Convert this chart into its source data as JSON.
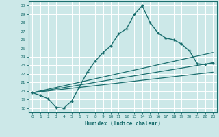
{
  "xlabel": "Humidex (Indice chaleur)",
  "ylabel": "",
  "background_color": "#cce8e8",
  "grid_color": "#ffffff",
  "line_color": "#1a6e6e",
  "xlim": [
    -0.5,
    23.5
  ],
  "ylim": [
    17.5,
    30.5
  ],
  "xticks": [
    0,
    1,
    2,
    3,
    4,
    5,
    6,
    7,
    8,
    9,
    10,
    11,
    12,
    13,
    14,
    15,
    16,
    17,
    18,
    19,
    20,
    21,
    22,
    23
  ],
  "yticks": [
    18,
    19,
    20,
    21,
    22,
    23,
    24,
    25,
    26,
    27,
    28,
    29,
    30
  ],
  "series": [
    {
      "x": [
        0,
        1,
        2,
        3,
        4,
        5,
        6,
        7,
        8,
        9,
        10,
        11,
        12,
        13,
        14,
        15,
        16,
        17,
        18,
        19,
        20,
        21,
        22,
        23
      ],
      "y": [
        19.8,
        19.5,
        19.1,
        18.1,
        18.0,
        18.8,
        20.5,
        22.2,
        23.5,
        24.5,
        25.3,
        26.7,
        27.3,
        29.0,
        30.0,
        28.0,
        26.8,
        26.2,
        26.0,
        25.5,
        24.7,
        23.2,
        23.1,
        23.3
      ],
      "marker": "+",
      "linewidth": 1.0
    },
    {
      "x": [
        0,
        23
      ],
      "y": [
        19.8,
        23.3
      ],
      "marker": null,
      "linewidth": 0.9
    },
    {
      "x": [
        0,
        23
      ],
      "y": [
        19.8,
        24.5
      ],
      "marker": null,
      "linewidth": 0.9
    },
    {
      "x": [
        0,
        23
      ],
      "y": [
        19.8,
        22.2
      ],
      "marker": null,
      "linewidth": 0.9
    }
  ]
}
